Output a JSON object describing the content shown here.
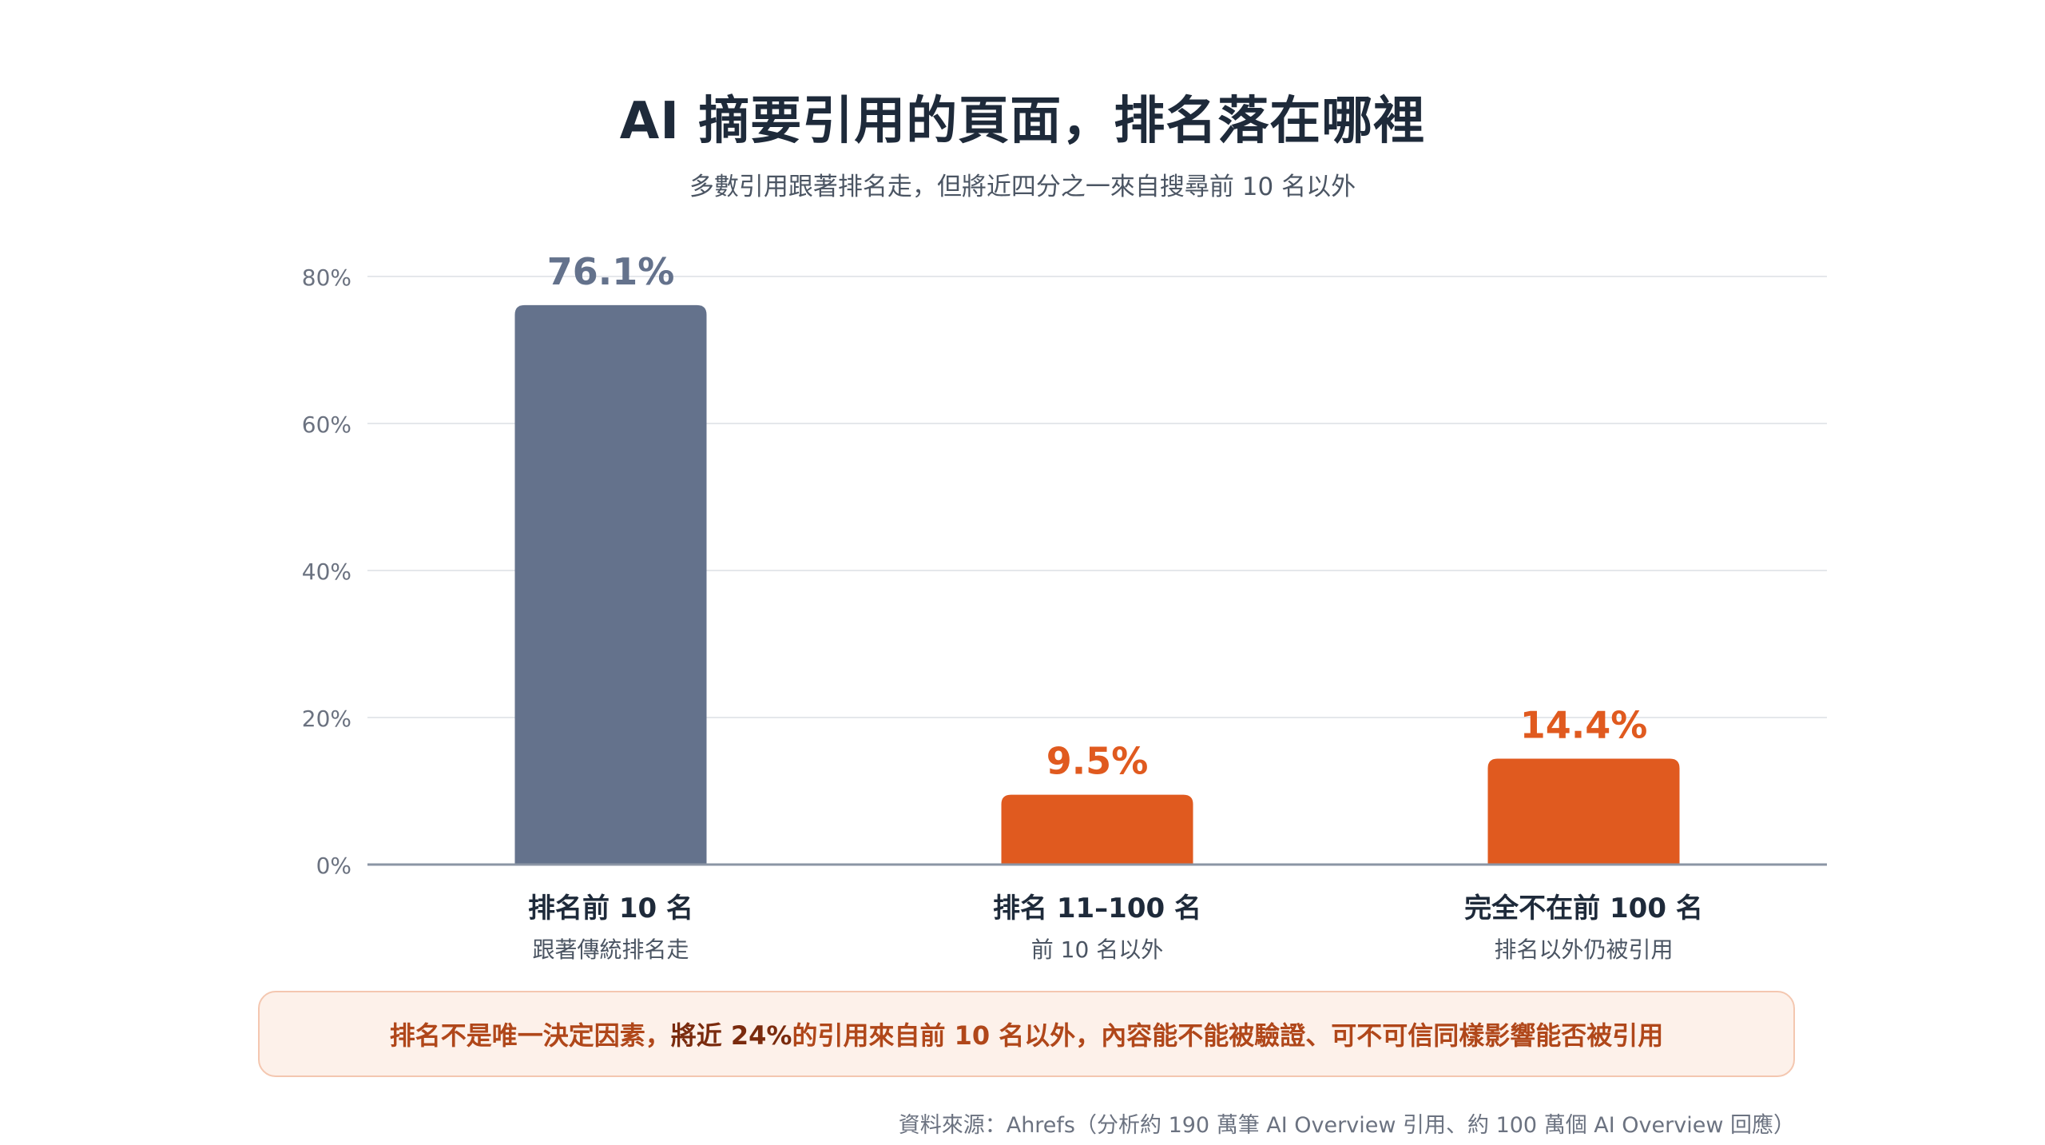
{
  "title": "AI 摘要引用的頁面，排名落在哪裡",
  "subtitle": "多數引用跟著排名走，但將近四分之一來自搜尋前 10 名以外",
  "chart_data": {
    "type": "bar",
    "ylim": [
      0,
      80
    ],
    "yticks": [
      0,
      20,
      40,
      60,
      80
    ],
    "ytick_labels": [
      "0%",
      "20%",
      "40%",
      "60%",
      "80%"
    ],
    "grid": true,
    "categories": [
      "排名前 10 名",
      "排名 11–100 名",
      "完全不在前 100 名"
    ],
    "sublabels": [
      "跟著傳統排名走",
      "前 10 名以外",
      "排名以外仍被引用"
    ],
    "values": [
      76.1,
      9.5,
      14.4
    ],
    "value_labels": [
      "76.1%",
      "9.5%",
      "14.4%"
    ],
    "colors": [
      "#64728c",
      "#e05a1f",
      "#e05a1f"
    ],
    "axis_color": "#8b95a5",
    "grid_color": "#e5e7eb"
  },
  "callout": {
    "prefix": "排名不是唯一決定因素，",
    "highlight": "將近 24%",
    "suffix": " 的引用來自前 10 名以外，內容能不能被驗證、可不可信同樣影響能否被引用"
  },
  "source": "資料來源：Ahrefs（分析約 190 萬筆 AI Overview 引用、約 100 萬個 AI Overview 回應）"
}
